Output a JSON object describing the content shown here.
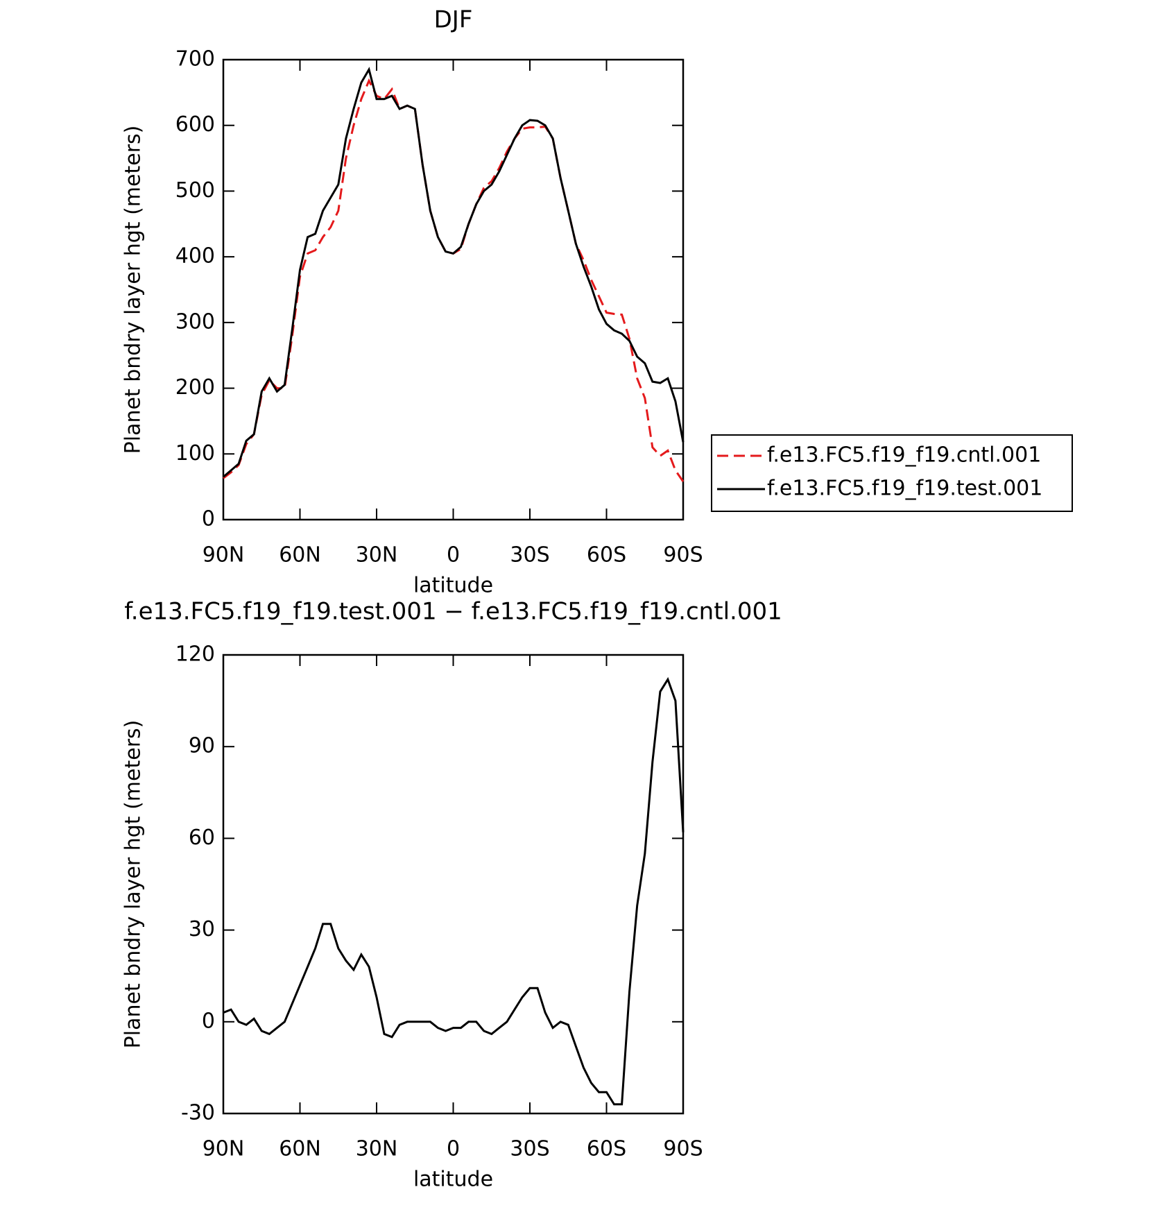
{
  "chart_data": [
    {
      "type": "line",
      "title": "DJF",
      "xlabel": "latitude",
      "ylabel": "Planet bndry layer hgt (meters)",
      "x": [
        90,
        87,
        84,
        81,
        78,
        75,
        72,
        69,
        66,
        63,
        60,
        57,
        54,
        51,
        48,
        45,
        42,
        39,
        36,
        33,
        30,
        27,
        24,
        21,
        18,
        15,
        12,
        9,
        6,
        3,
        0,
        -3,
        -6,
        -9,
        -12,
        -15,
        -18,
        -21,
        -24,
        -27,
        -30,
        -33,
        -36,
        -39,
        -42,
        -45,
        -48,
        -51,
        -54,
        -57,
        -60,
        -63,
        -66,
        -69,
        -72,
        -75,
        -78,
        -81,
        -84,
        -87,
        -90
      ],
      "series": [
        {
          "name": "f.e13.FC5.f19_f19.cntl.001",
          "color": "#e41a1c",
          "dashed": true,
          "values": [
            63,
            72,
            83,
            115,
            130,
            190,
            212,
            200,
            200,
            280,
            370,
            405,
            410,
            430,
            445,
            470,
            550,
            600,
            640,
            668,
            645,
            640,
            655,
            625,
            630,
            625,
            540,
            470,
            430,
            408,
            405,
            412,
            450,
            480,
            505,
            515,
            535,
            560,
            580,
            595,
            597,
            597,
            598,
            580,
            520,
            470,
            420,
            395,
            365,
            340,
            315,
            313,
            312,
            275,
            215,
            185,
            110,
            97,
            105,
            75,
            58
          ]
        },
        {
          "name": "f.e13.FC5.f19_f19.test.001",
          "color": "#000000",
          "dashed": false,
          "values": [
            65,
            75,
            85,
            120,
            130,
            195,
            215,
            195,
            205,
            290,
            380,
            430,
            435,
            470,
            490,
            510,
            580,
            625,
            665,
            685,
            640,
            640,
            645,
            625,
            630,
            625,
            540,
            470,
            430,
            408,
            405,
            415,
            450,
            480,
            500,
            510,
            530,
            555,
            580,
            600,
            608,
            607,
            600,
            580,
            520,
            470,
            420,
            385,
            355,
            320,
            298,
            288,
            283,
            272,
            248,
            238,
            210,
            208,
            215,
            180,
            118
          ]
        }
      ],
      "xlim": [
        90,
        -90
      ],
      "xticks": [
        {
          "value": 90,
          "label": "90N"
        },
        {
          "value": 60,
          "label": "60N"
        },
        {
          "value": 30,
          "label": "30N"
        },
        0,
        {
          "value": -30,
          "label": "30S"
        },
        {
          "value": -60,
          "label": "60S"
        },
        {
          "value": -90,
          "label": "90S"
        }
      ],
      "ylim": [
        0,
        700
      ],
      "yticks": [
        0,
        100,
        200,
        300,
        400,
        500,
        600,
        700
      ],
      "legend": "right"
    },
    {
      "type": "line",
      "title": "f.e13.FC5.f19_f19.test.001 − f.e13.FC5.f19_f19.cntl.001",
      "xlabel": "latitude",
      "ylabel": "Planet bndry layer hgt (meters)",
      "x": [
        90,
        87,
        84,
        81,
        78,
        75,
        72,
        69,
        66,
        63,
        60,
        57,
        54,
        51,
        48,
        45,
        42,
        39,
        36,
        33,
        30,
        27,
        24,
        21,
        18,
        15,
        12,
        9,
        6,
        3,
        0,
        -3,
        -6,
        -9,
        -12,
        -15,
        -18,
        -21,
        -24,
        -27,
        -30,
        -33,
        -36,
        -39,
        -42,
        -45,
        -48,
        -51,
        -54,
        -57,
        -60,
        -63,
        -66,
        -69,
        -72,
        -75,
        -78,
        -81,
        -84,
        -87,
        -90
      ],
      "series": [
        {
          "color": "#000000",
          "dashed": false,
          "values": [
            3,
            4,
            0,
            -1,
            1,
            -3,
            -4,
            -2,
            0,
            6,
            12,
            18,
            24,
            32,
            32,
            24,
            20,
            17,
            22,
            18,
            8,
            -4,
            -5,
            -1,
            0,
            0,
            0,
            0,
            -2,
            -3,
            -2,
            -2,
            0,
            0,
            -3,
            -4,
            -2,
            0,
            4,
            8,
            11,
            11,
            3,
            -2,
            0,
            -1,
            -8,
            -15,
            -20,
            -23,
            -23,
            -27,
            -27,
            10,
            38,
            55,
            85,
            108,
            112,
            105,
            62
          ]
        }
      ],
      "xlim": [
        90,
        -90
      ],
      "xticks": [
        {
          "value": 90,
          "label": "90N"
        },
        {
          "value": 60,
          "label": "60N"
        },
        {
          "value": 30,
          "label": "30N"
        },
        0,
        {
          "value": -30,
          "label": "30S"
        },
        {
          "value": -60,
          "label": "60S"
        },
        {
          "value": -90,
          "label": "90S"
        }
      ],
      "ylim": [
        -30,
        120
      ],
      "yticks": [
        -30,
        0,
        30,
        60,
        90,
        120
      ]
    }
  ]
}
